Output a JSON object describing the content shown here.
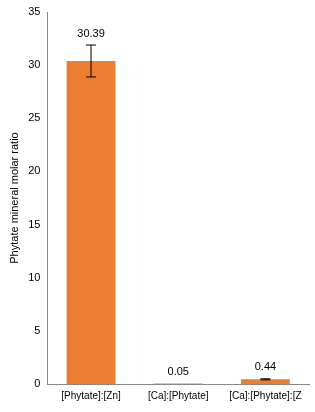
{
  "chart_data": {
    "type": "bar",
    "y_label": "Phytate mineral molar ratio",
    "categories": [
      "[Phytate]:[Zn]",
      "[Ca]:[Phytate]",
      "[Ca]:[Phytate]:[Z"
    ],
    "values": [
      30.39,
      0.05,
      0.44
    ],
    "errors": [
      1.5,
      0,
      0.05
    ],
    "color": "#ed7d31",
    "ylim": [
      0,
      35
    ],
    "yticks": [
      0,
      5,
      10,
      15,
      20,
      25,
      30,
      35
    ],
    "grid": false,
    "data_labels": true
  }
}
